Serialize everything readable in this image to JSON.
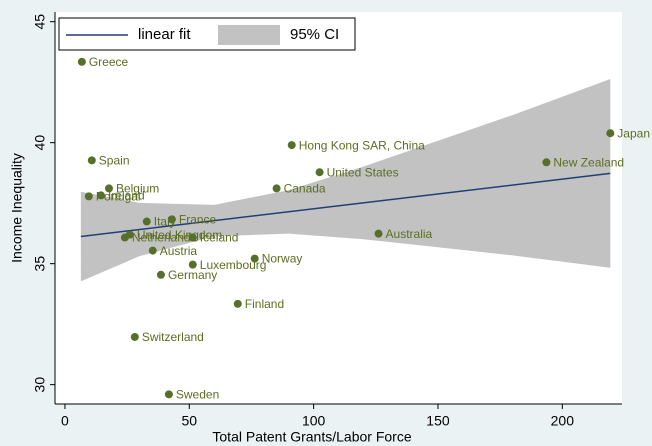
{
  "chart_data": {
    "type": "scatter",
    "xlabel": "Total Patent Grants/Labor Force",
    "ylabel": "Income Inequality",
    "xlim": [
      -4,
      224
    ],
    "ylim": [
      29.2,
      45.4
    ],
    "xticks": [
      0,
      50,
      100,
      150,
      200
    ],
    "yticks": [
      30,
      35,
      40,
      45
    ],
    "legend": "top-left",
    "points": {
      "color": "#566f2a",
      "label_color": "#5b6e23",
      "labels": [
        "Greece",
        "Spain",
        "Belgium",
        "Portugal",
        "Ireland",
        "Italy",
        "France",
        "United Kingdom",
        "Netherlands",
        "Iceland",
        "Austria",
        "Germany",
        "Luxembourg",
        "Norway",
        "Finland",
        "Switzerland",
        "Sweden",
        "Hong Kong SAR, China",
        "United States",
        "Canada",
        "Australia",
        "New Zealand",
        "Japan"
      ],
      "x": [
        6.8,
        10.8,
        17.7,
        9.6,
        14.5,
        32.9,
        43,
        26.1,
        24.1,
        51.4,
        35.3,
        38.6,
        51.4,
        76.3,
        69.5,
        28.1,
        41.8,
        91.2,
        102.4,
        85.1,
        126.1,
        193.6,
        219.3
      ],
      "values": [
        43.34,
        39.27,
        38.11,
        37.78,
        37.82,
        36.74,
        36.83,
        36.2,
        36.08,
        36.08,
        35.54,
        34.54,
        34.96,
        35.21,
        33.34,
        31.97,
        29.6,
        39.9,
        38.78,
        38.11,
        36.24,
        39.19,
        40.39
      ]
    },
    "fit": {
      "name": "linear fit",
      "color": "#1f3f77",
      "x": [
        6.4,
        219.3
      ],
      "values": [
        36.12,
        38.73
      ]
    },
    "ci": {
      "name": "95% CI",
      "color": "#c2c2c2",
      "x": [
        6.4,
        30,
        60,
        90,
        120,
        150,
        180,
        219.3
      ],
      "upper": [
        37.97,
        37.51,
        37.43,
        38.04,
        39.01,
        40.08,
        41.14,
        42.63
      ],
      "lower": [
        34.27,
        35.31,
        36.13,
        36.24,
        36.01,
        35.68,
        35.34,
        34.83
      ]
    }
  }
}
